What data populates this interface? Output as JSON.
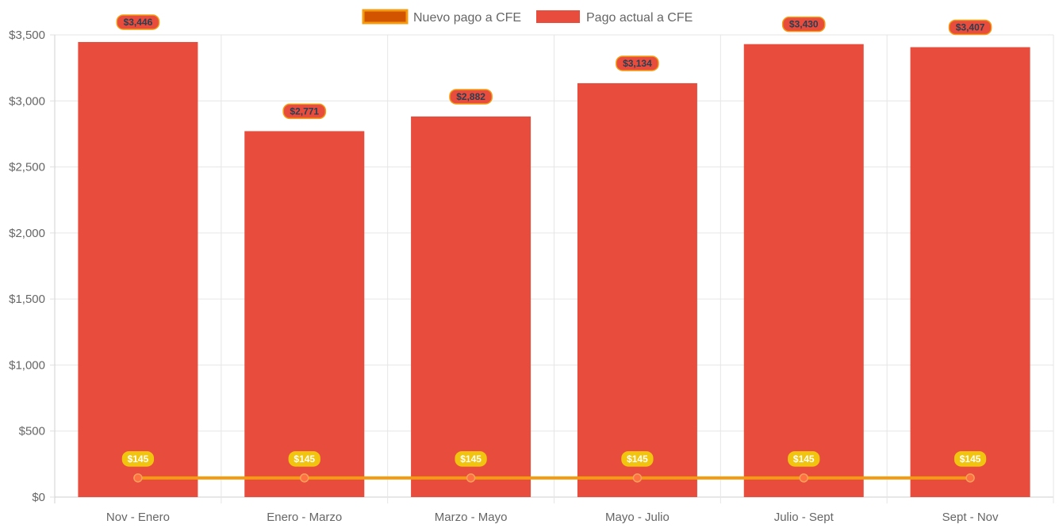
{
  "chart_data": {
    "type": "bar",
    "categories": [
      "Nov - Enero",
      "Enero - Marzo",
      "Marzo - Mayo",
      "Mayo - Julio",
      "Julio - Sept",
      "Sept - Nov"
    ],
    "series": [
      {
        "name": "Nuevo pago a CFE",
        "type": "line",
        "values": [
          145,
          145,
          145,
          145,
          145,
          145
        ],
        "labels": [
          "$145",
          "$145",
          "$145",
          "$145",
          "$145",
          "$145"
        ],
        "color": "#f39c12",
        "legend_fill": "#d35400",
        "point_color": "#ff7043",
        "label_bg": "#f1c40f",
        "label_text_color": "#ffffff"
      },
      {
        "name": "Pago actual a CFE",
        "type": "bar",
        "values": [
          3446,
          2771,
          2882,
          3134,
          3430,
          3407
        ],
        "labels": [
          "$3,446",
          "$2,771",
          "$2,882",
          "$3,134",
          "$3,430",
          "$3,407"
        ],
        "color": "#e74c3c",
        "label_bg": "#e74c3c",
        "label_border": "#f39c12",
        "label_text_color": "#2c3e50"
      }
    ],
    "yticks": [
      {
        "value": 0,
        "label": "$0"
      },
      {
        "value": 500,
        "label": "$500"
      },
      {
        "value": 1000,
        "label": "$1,000"
      },
      {
        "value": 1500,
        "label": "$1,500"
      },
      {
        "value": 2000,
        "label": "$2,000"
      },
      {
        "value": 2500,
        "label": "$2,500"
      },
      {
        "value": 3000,
        "label": "$3,000"
      },
      {
        "value": 3500,
        "label": "$3,500"
      }
    ],
    "ylim": [
      0,
      3500
    ],
    "title": "",
    "xlabel": "",
    "ylabel": "",
    "grid": true,
    "legend_position": "top-center"
  }
}
